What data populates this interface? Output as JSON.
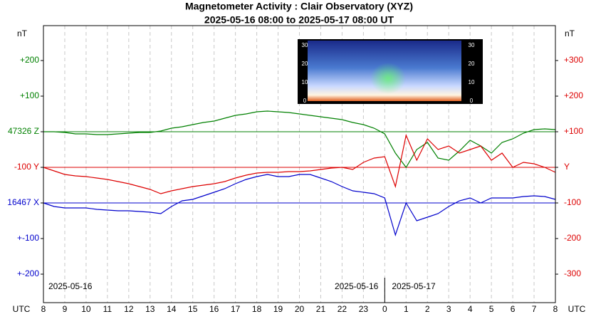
{
  "chart_data": {
    "type": "line",
    "title": "Magnetometer Activity : Clair Observatory (XYZ)",
    "subtitle": "2025-05-16 08:00 to 2025-05-17 08:00 UT",
    "y_unit_left": "nT",
    "y_unit_right": "nT",
    "x_label_left": "UTC",
    "x_label_right": "UTC",
    "date_labels": [
      "2025-05-16",
      "2025-05-16",
      "2025-05-17"
    ],
    "x": [
      0,
      0.5,
      1,
      1.5,
      2,
      2.5,
      3,
      3.5,
      4,
      4.5,
      5,
      5.5,
      6,
      6.5,
      7,
      7.5,
      8,
      8.5,
      9,
      9.5,
      10,
      10.5,
      11,
      11.5,
      12,
      12.5,
      13,
      13.5,
      14,
      14.5,
      15,
      15.5,
      16,
      16.5,
      17,
      17.5,
      18,
      18.5,
      19,
      19.5,
      20,
      20.5,
      21,
      21.5,
      22,
      22.5,
      23,
      23.5,
      24
    ],
    "series": [
      {
        "name": "Z",
        "color": "#008000",
        "values": [
          100,
          100,
          98,
          94,
          94,
          92,
          92,
          94,
          96,
          98,
          98,
          102,
          110,
          114,
          120,
          126,
          130,
          138,
          146,
          150,
          156,
          158,
          156,
          154,
          150,
          146,
          142,
          138,
          134,
          126,
          120,
          110,
          94,
          40,
          0,
          50,
          70,
          26,
          20,
          46,
          76,
          60,
          40,
          70,
          80,
          96,
          106,
          108,
          106
        ]
      },
      {
        "name": "Y",
        "color": "#dd0000",
        "values": [
          0,
          -10,
          -20,
          -24,
          -26,
          -30,
          -34,
          -40,
          -46,
          -54,
          -62,
          -74,
          -66,
          -60,
          -54,
          -50,
          -46,
          -40,
          -30,
          -22,
          -16,
          -14,
          -14,
          -12,
          -12,
          -10,
          -6,
          -2,
          0,
          -6,
          14,
          26,
          30,
          -54,
          90,
          20,
          80,
          50,
          60,
          40,
          50,
          60,
          20,
          40,
          0,
          14,
          10,
          0,
          -14
        ]
      },
      {
        "name": "X",
        "color": "#0000cc",
        "values": [
          -100,
          -110,
          -114,
          -114,
          -114,
          -118,
          -120,
          -122,
          -122,
          -124,
          -126,
          -130,
          -110,
          -94,
          -90,
          -80,
          -70,
          -60,
          -46,
          -34,
          -26,
          -20,
          -26,
          -26,
          -20,
          -20,
          -30,
          -40,
          -54,
          -66,
          -70,
          -74,
          -86,
          -190,
          -100,
          -150,
          -140,
          -130,
          -110,
          -94,
          -86,
          -100,
          -86,
          -86,
          -86,
          -82,
          -80,
          -82,
          -90
        ]
      }
    ],
    "baselines": [
      {
        "value": 100,
        "color": "#008000"
      },
      {
        "value": 0,
        "color": "#dd0000"
      },
      {
        "value": -100,
        "color": "#0000cc"
      }
    ],
    "xlim": [
      0,
      24
    ],
    "xticks": [
      {
        "value": 0,
        "label": "8"
      },
      {
        "value": 1,
        "label": "9"
      },
      {
        "value": 2,
        "label": "10"
      },
      {
        "value": 3,
        "label": "11"
      },
      {
        "value": 4,
        "label": "12"
      },
      {
        "value": 5,
        "label": "13"
      },
      {
        "value": 6,
        "label": "14"
      },
      {
        "value": 7,
        "label": "15"
      },
      {
        "value": 8,
        "label": "16"
      },
      {
        "value": 9,
        "label": "17"
      },
      {
        "value": 10,
        "label": "18"
      },
      {
        "value": 11,
        "label": "19"
      },
      {
        "value": 12,
        "label": "20"
      },
      {
        "value": 13,
        "label": "21"
      },
      {
        "value": 14,
        "label": "22"
      },
      {
        "value": 15,
        "label": "23"
      },
      {
        "value": 16,
        "label": "0"
      },
      {
        "value": 17,
        "label": "1"
      },
      {
        "value": 18,
        "label": "2"
      },
      {
        "value": 19,
        "label": "3"
      },
      {
        "value": 20,
        "label": "4"
      },
      {
        "value": 21,
        "label": "5"
      },
      {
        "value": 22,
        "label": "6"
      },
      {
        "value": 23,
        "label": "7"
      },
      {
        "value": 24,
        "label": "8"
      }
    ],
    "ylim": [
      -380,
      398
    ],
    "yticks": [
      {
        "value": 300,
        "label": "+300"
      },
      {
        "value": 200,
        "label": "+200"
      },
      {
        "value": 100,
        "label": "+100"
      },
      {
        "value": 0,
        "label": "Y"
      },
      -100,
      -200,
      -300
    ],
    "ytick_color": "#dd0000",
    "y_left_ticks": [
      {
        "value": 300,
        "label": "+200",
        "color": "#008000"
      },
      {
        "value": 200,
        "label": "+100",
        "color": "#008000"
      },
      {
        "value": 100,
        "label": "47326 Z",
        "color": "#008000"
      },
      {
        "value": 0,
        "label": "-100 Y",
        "color": "#dd0000"
      },
      {
        "value": -100,
        "label": "16467 X",
        "color": "#0000cc"
      },
      {
        "value": -200,
        "label": "+-100",
        "color": "#0000cc"
      },
      {
        "value": -300,
        "label": "+-200",
        "color": "#0000cc"
      }
    ],
    "grid": true,
    "inset_ticks": [
      0,
      10,
      20,
      30
    ]
  }
}
